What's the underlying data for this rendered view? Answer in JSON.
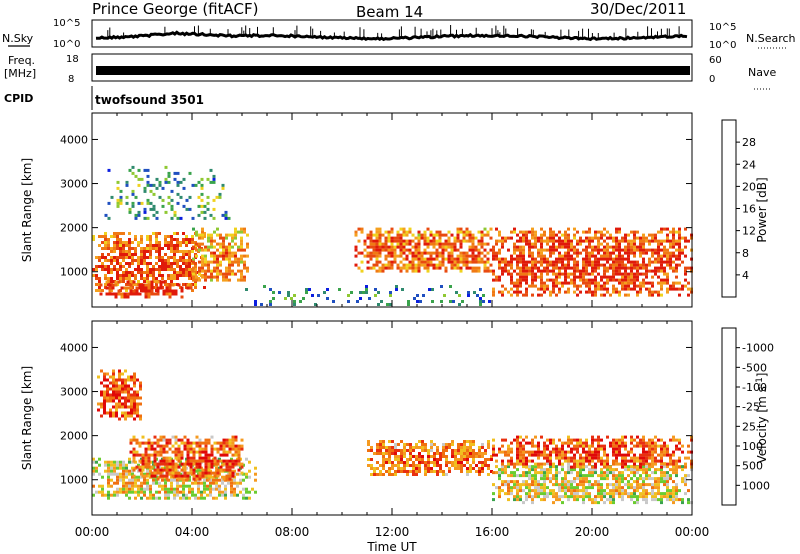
{
  "header": {
    "station": "Prince George (fitACF)",
    "beam": "Beam 14",
    "date": "30/Dec/2011"
  },
  "noise_panel": {
    "left_label": "N.Sky",
    "right_label": "N.Search",
    "left_ticks": [
      "10^5",
      "10^0"
    ],
    "right_ticks": [
      "10^5",
      "10^0"
    ]
  },
  "freq_panel": {
    "left_label_1": "Freq.",
    "left_label_2": "[MHz]",
    "right_label": "Nave",
    "left_ticks": [
      "18",
      "8"
    ],
    "right_ticks": [
      "60",
      "0"
    ]
  },
  "cpid_panel": {
    "label": "CPID",
    "program": "twofsound 3501"
  },
  "time_axis": {
    "label": "Time UT",
    "ticks": [
      "00:00",
      "04:00",
      "08:00",
      "12:00",
      "16:00",
      "20:00",
      "00:00"
    ]
  },
  "chart_data": [
    {
      "type": "heatmap",
      "title": "Power",
      "ylabel": "Slant Range [km]",
      "xlabel": "",
      "x_range_hours": [
        0,
        24
      ],
      "ylim": [
        200,
        4600
      ],
      "y_ticks": [
        1000,
        2000,
        3000,
        4000
      ],
      "colorbar": {
        "label": "Power [dB]",
        "ticks": [
          "4",
          "8",
          "12",
          "16",
          "20",
          "24",
          "28"
        ],
        "colors": [
          "#0b1ee0",
          "#1f4fc0",
          "#2f8a6e",
          "#3aa34c",
          "#8fc832",
          "#f0d21e",
          "#f5a01e",
          "#f07a14",
          "#e84a10",
          "#e01a0a"
        ]
      },
      "regions": [
        {
          "t0": 0.0,
          "t1": 4.5,
          "r0": 600,
          "r1": 1900,
          "level": 0.75
        },
        {
          "t0": 0.3,
          "t1": 4.0,
          "r0": 450,
          "r1": 800,
          "level": 0.85
        },
        {
          "t0": 4.0,
          "t1": 6.2,
          "r0": 800,
          "r1": 2000,
          "level": 0.6
        },
        {
          "t0": 10.5,
          "t1": 16.0,
          "r0": 1000,
          "r1": 2000,
          "level": 0.7
        },
        {
          "t0": 16.0,
          "t1": 24.0,
          "r0": 500,
          "r1": 2000,
          "level": 0.8
        },
        {
          "t0": 0.5,
          "t1": 5.5,
          "r0": 2200,
          "r1": 3400,
          "level": 0.25
        },
        {
          "t0": 6.0,
          "t1": 16.0,
          "r0": 250,
          "r1": 700,
          "level": 0.15
        }
      ]
    },
    {
      "type": "heatmap",
      "title": "Velocity",
      "ylabel": "Slant Range [km]",
      "xlabel": "Time UT",
      "x_range_hours": [
        0,
        24
      ],
      "ylim": [
        200,
        4600
      ],
      "y_ticks": [
        1000,
        2000,
        3000,
        4000
      ],
      "colorbar": {
        "label": "Velocity [m s^-1]",
        "ticks": [
          "1000",
          "500",
          "100",
          "25",
          "-25",
          "-100",
          "-500",
          "-1000"
        ],
        "colors": [
          "#1540c8",
          "#2a78a0",
          "#3aa34c",
          "#6acc30",
          "#c8c8c8",
          "#f0c020",
          "#f59a20",
          "#f07010",
          "#e83010",
          "#e00808"
        ]
      },
      "regions": [
        {
          "t0": 0.0,
          "t1": 6.5,
          "r0": 550,
          "r1": 1500,
          "level": 0.45
        },
        {
          "t0": 1.5,
          "t1": 6.0,
          "r0": 1000,
          "r1": 2000,
          "level": 0.7
        },
        {
          "t0": 11.0,
          "t1": 16.0,
          "r0": 1100,
          "r1": 1900,
          "level": 0.65
        },
        {
          "t0": 16.0,
          "t1": 24.0,
          "r0": 500,
          "r1": 1400,
          "level": 0.45
        },
        {
          "t0": 16.0,
          "t1": 24.0,
          "r0": 1300,
          "r1": 2000,
          "level": 0.72
        },
        {
          "t0": 0.2,
          "t1": 2.0,
          "r0": 2400,
          "r1": 3500,
          "level": 0.75
        }
      ]
    }
  ]
}
